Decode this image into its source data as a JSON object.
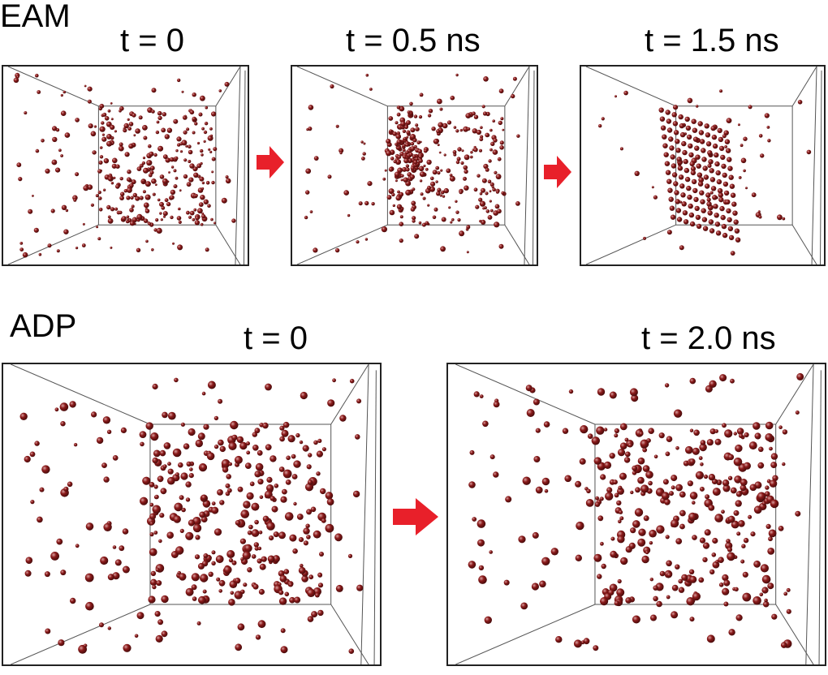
{
  "figure": {
    "rows": [
      {
        "label": "EAM",
        "panels": [
          {
            "time_label": "t  = 0",
            "state": "dispersed"
          },
          {
            "time_label": "t = 0.5 ns",
            "state": "nucleating cluster"
          },
          {
            "time_label": "t = 1.5 ns",
            "state": "ordered crystal"
          }
        ]
      },
      {
        "label": "ADP",
        "panels": [
          {
            "time_label": "t = 0",
            "state": "dispersed"
          },
          {
            "time_label": "t = 2.0 ns",
            "state": "dispersed"
          }
        ]
      }
    ],
    "colors": {
      "atom": "#8b1a1a",
      "atom_highlight": "#d9a0a0",
      "box_edge": "#555555",
      "panel_border": "#222222",
      "arrow": "#e8202a"
    },
    "icons": [
      "right-arrow-icon"
    ]
  }
}
